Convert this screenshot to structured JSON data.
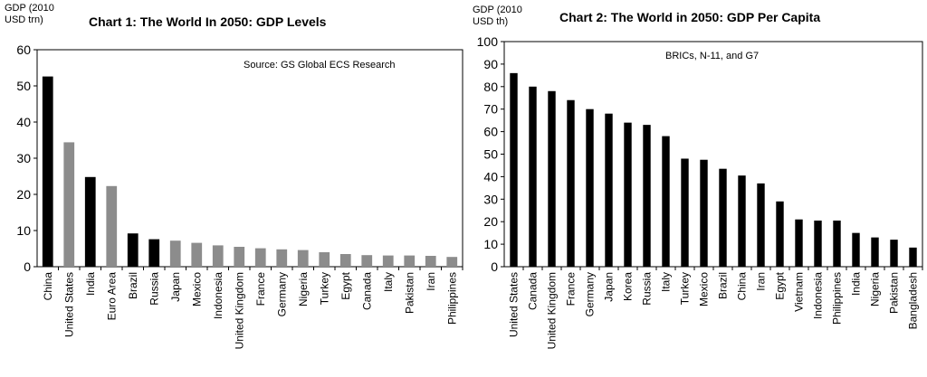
{
  "chart_data": [
    {
      "type": "bar",
      "title": "Chart 1: The World In 2050: GDP Levels",
      "ylabel": "GDP (2010\nUSD trn)",
      "annotation": "Source: GS Global ECS Research",
      "ylim": [
        0,
        60
      ],
      "yticks": [
        0,
        10,
        20,
        30,
        40,
        50,
        60
      ],
      "grid": false,
      "categories": [
        "China",
        "United States",
        "India",
        "Euro Area",
        "Brazil",
        "Russia",
        "Japan",
        "Mexico",
        "Indonesia",
        "United Kingdom",
        "France",
        "Germany",
        "Nigeria",
        "Turkey",
        "Egypt",
        "Canada",
        "Italy",
        "Pakistan",
        "Iran",
        "Philippines"
      ],
      "values": [
        52.6,
        34.4,
        24.8,
        22.3,
        9.2,
        7.6,
        7.2,
        6.6,
        5.9,
        5.5,
        5.1,
        4.8,
        4.6,
        4.0,
        3.5,
        3.2,
        3.1,
        3.1,
        3.0,
        2.7
      ],
      "bar_colors": [
        "#000000",
        "#8c8c8c",
        "#000000",
        "#8c8c8c",
        "#000000",
        "#000000",
        "#8c8c8c",
        "#8c8c8c",
        "#8c8c8c",
        "#8c8c8c",
        "#8c8c8c",
        "#8c8c8c",
        "#8c8c8c",
        "#8c8c8c",
        "#8c8c8c",
        "#8c8c8c",
        "#8c8c8c",
        "#8c8c8c",
        "#8c8c8c",
        "#8c8c8c"
      ]
    },
    {
      "type": "bar",
      "title": "Chart 2: The World in 2050: GDP Per Capita",
      "ylabel": "GDP (2010\nUSD th)",
      "annotation": "BRICs, N-11, and G7",
      "ylim": [
        0,
        100
      ],
      "yticks": [
        0,
        10,
        20,
        30,
        40,
        50,
        60,
        70,
        80,
        90,
        100
      ],
      "grid": false,
      "categories": [
        "United States",
        "Canada",
        "United Kingdom",
        "France",
        "Germany",
        "Japan",
        "Korea",
        "Russia",
        "Italy",
        "Turkey",
        "Mexico",
        "Brazil",
        "China",
        "Iran",
        "Egypt",
        "Vietnam",
        "Indonesia",
        "Philippines",
        "India",
        "Nigeria",
        "Pakistan",
        "Bangladesh"
      ],
      "values": [
        86,
        80,
        78,
        74,
        70,
        68,
        64,
        63,
        58,
        48,
        47.5,
        43.5,
        40.5,
        37,
        29,
        21,
        20.5,
        20.5,
        15,
        13,
        12,
        8.5
      ],
      "bar_colors": [
        "#000000",
        "#000000",
        "#000000",
        "#000000",
        "#000000",
        "#000000",
        "#000000",
        "#000000",
        "#000000",
        "#000000",
        "#000000",
        "#000000",
        "#000000",
        "#000000",
        "#000000",
        "#000000",
        "#000000",
        "#000000",
        "#000000",
        "#000000",
        "#000000",
        "#000000"
      ]
    }
  ]
}
